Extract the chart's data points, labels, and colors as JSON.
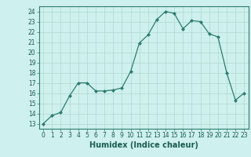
{
  "x": [
    0,
    1,
    2,
    3,
    4,
    5,
    6,
    7,
    8,
    9,
    10,
    11,
    12,
    13,
    14,
    15,
    16,
    17,
    18,
    19,
    20,
    21,
    22,
    23
  ],
  "y": [
    13,
    13.8,
    14.1,
    15.7,
    17.0,
    17.0,
    16.2,
    16.2,
    16.3,
    16.5,
    18.1,
    20.9,
    21.7,
    23.2,
    24.0,
    23.8,
    22.3,
    23.1,
    23.0,
    21.8,
    21.5,
    18.0,
    15.3,
    16.0
  ],
  "line_color": "#2e7d6e",
  "marker_color": "#2e7d6e",
  "bg_color": "#cef0ee",
  "grid_color": "#b0d8d0",
  "xlabel": "Humidex (Indice chaleur)",
  "xlim": [
    -0.5,
    23.5
  ],
  "ylim": [
    12.5,
    24.5
  ],
  "yticks": [
    13,
    14,
    15,
    16,
    17,
    18,
    19,
    20,
    21,
    22,
    23,
    24
  ],
  "xticks": [
    0,
    1,
    2,
    3,
    4,
    5,
    6,
    7,
    8,
    9,
    10,
    11,
    12,
    13,
    14,
    15,
    16,
    17,
    18,
    19,
    20,
    21,
    22,
    23
  ],
  "tick_fontsize": 5.5,
  "label_fontsize": 7.0
}
